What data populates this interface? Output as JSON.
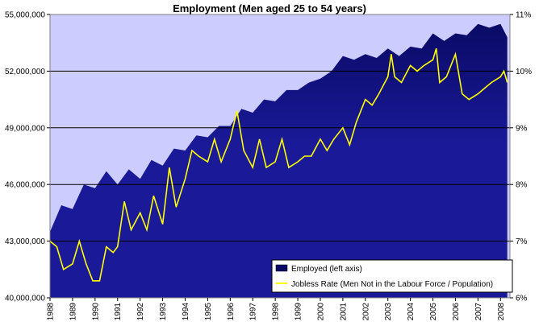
{
  "chart_data": {
    "type": "area",
    "title": "Employment (Men aged 25 to 54 years)",
    "x_ticks": [
      "1988",
      "1989",
      "1990",
      "1991",
      "1992",
      "1993",
      "1994",
      "1995",
      "1996",
      "1997",
      "1998",
      "1999",
      "2000",
      "2001",
      "2002",
      "2003",
      "2004",
      "2005",
      "2006",
      "2007",
      "2008"
    ],
    "y_left": {
      "range": [
        40000000,
        55000000
      ],
      "ticks": [
        {
          "value": 40000000,
          "label": "40,000,000"
        },
        {
          "value": 43000000,
          "label": "43,000,000"
        },
        {
          "value": 46000000,
          "label": "46,000,000"
        },
        {
          "value": 49000000,
          "label": "49,000,000"
        },
        {
          "value": 52000000,
          "label": "52,000,000"
        },
        {
          "value": 55000000,
          "label": "55,000,000"
        }
      ]
    },
    "y_right": {
      "range": [
        6,
        11
      ],
      "ticks": [
        {
          "value": 6,
          "label": "6%"
        },
        {
          "value": 7,
          "label": "7%"
        },
        {
          "value": 8,
          "label": "8%"
        },
        {
          "value": 9,
          "label": "9%"
        },
        {
          "value": 10,
          "label": "10%"
        },
        {
          "value": 11,
          "label": "11%"
        }
      ]
    },
    "grid": "horizontal at left-axis major ticks",
    "legend_position": "bottom-right",
    "series": [
      {
        "name": "Employed (left axis)",
        "axis": "left",
        "color": "#0a0a66",
        "x": [
          1988.0,
          1988.5,
          1989.0,
          1989.5,
          1990.0,
          1990.5,
          1991.0,
          1991.5,
          1992.0,
          1992.5,
          1993.0,
          1993.5,
          1994.0,
          1994.5,
          1995.0,
          1995.5,
          1996.0,
          1996.5,
          1997.0,
          1997.5,
          1998.0,
          1998.5,
          1999.0,
          1999.5,
          2000.0,
          2000.5,
          2001.0,
          2001.5,
          2002.0,
          2002.5,
          2003.0,
          2003.5,
          2004.0,
          2004.5,
          2005.0,
          2005.5,
          2006.0,
          2006.5,
          2007.0,
          2007.5,
          2008.0,
          2008.3
        ],
        "values": [
          43500000,
          44900000,
          44700000,
          46000000,
          45800000,
          46700000,
          46000000,
          46800000,
          46300000,
          47300000,
          47000000,
          47900000,
          47800000,
          48600000,
          48500000,
          49100000,
          49100000,
          50000000,
          49800000,
          50500000,
          50400000,
          51000000,
          51000000,
          51400000,
          51600000,
          52000000,
          52800000,
          52600000,
          52900000,
          52700000,
          53200000,
          52800000,
          53300000,
          53200000,
          54000000,
          53600000,
          54000000,
          53900000,
          54500000,
          54300000,
          54500000,
          53800000
        ]
      },
      {
        "name": "Jobless Rate (Men Not in the Labour Force / Population)",
        "axis": "right",
        "color": "#ffff00",
        "x": [
          1988.0,
          1988.3,
          1988.6,
          1989.0,
          1989.3,
          1989.6,
          1989.9,
          1990.2,
          1990.5,
          1990.8,
          1991.0,
          1991.3,
          1991.6,
          1992.0,
          1992.3,
          1992.6,
          1993.0,
          1993.3,
          1993.6,
          1994.0,
          1994.3,
          1994.6,
          1995.0,
          1995.3,
          1995.6,
          1996.0,
          1996.3,
          1996.6,
          1997.0,
          1997.3,
          1997.6,
          1998.0,
          1998.3,
          1998.6,
          1999.0,
          1999.3,
          1999.6,
          2000.0,
          2000.3,
          2000.6,
          2001.0,
          2001.3,
          2001.6,
          2002.0,
          2002.3,
          2002.6,
          2003.0,
          2003.15,
          2003.3,
          2003.6,
          2004.0,
          2004.3,
          2004.6,
          2005.0,
          2005.15,
          2005.3,
          2005.6,
          2006.0,
          2006.3,
          2006.6,
          2007.0,
          2007.3,
          2007.6,
          2008.0,
          2008.15,
          2008.3
        ],
        "values": [
          7.0,
          6.9,
          6.5,
          6.6,
          7.0,
          6.6,
          6.3,
          6.3,
          6.9,
          6.8,
          6.9,
          7.7,
          7.2,
          7.5,
          7.2,
          7.8,
          7.3,
          8.3,
          7.6,
          8.1,
          8.6,
          8.5,
          8.4,
          8.8,
          8.4,
          8.8,
          9.3,
          8.6,
          8.3,
          8.8,
          8.3,
          8.4,
          8.8,
          8.3,
          8.4,
          8.5,
          8.5,
          8.8,
          8.6,
          8.8,
          9.0,
          8.7,
          9.1,
          9.5,
          9.4,
          9.6,
          9.9,
          10.3,
          9.9,
          9.8,
          10.1,
          10.0,
          10.1,
          10.2,
          10.4,
          9.8,
          9.9,
          10.3,
          9.6,
          9.5,
          9.6,
          9.7,
          9.8,
          9.9,
          10.0,
          9.8
        ]
      }
    ],
    "background_color": "#ccccff",
    "fill_color_lower": "#1a1a99"
  }
}
